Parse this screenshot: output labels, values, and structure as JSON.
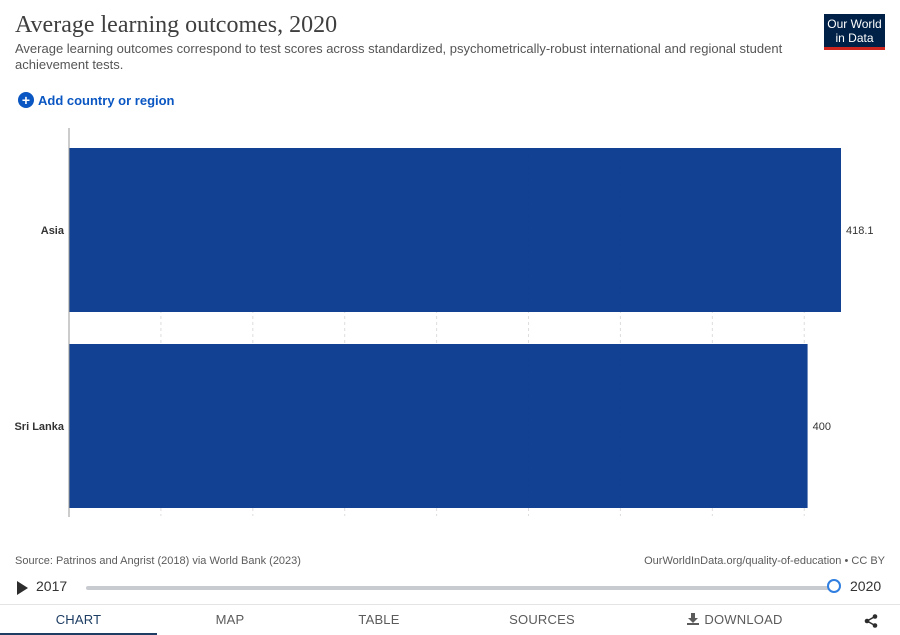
{
  "header": {
    "title": "Average learning outcomes, 2020",
    "subtitle": "Average learning outcomes correspond to test scores across standardized, psychometrically-robust international and regional student achievement tests.",
    "logo_line1": "Our World",
    "logo_line2": "in Data",
    "add_label": "Add country or region"
  },
  "chart_data": {
    "type": "bar",
    "orientation": "horizontal",
    "title": "Average learning outcomes, 2020",
    "categories": [
      "Asia",
      "Sri Lanka"
    ],
    "values": [
      418.1,
      400
    ],
    "value_labels": [
      "418.1",
      "400"
    ],
    "xlim": [
      0,
      418.1
    ],
    "grid": true,
    "bar_color": "#0a3b8f"
  },
  "footer": {
    "source": "Source: Patrinos and Angrist (2018) via World Bank (2023)",
    "url": "OurWorldInData.org/quality-of-education • CC BY"
  },
  "timeline": {
    "start_year": "2017",
    "end_year": "2020",
    "selected_year": 2020
  },
  "tabs": {
    "chart": "CHART",
    "map": "MAP",
    "table": "TABLE",
    "sources": "SOURCES",
    "download": "DOWNLOAD",
    "active": "chart"
  },
  "icons": {
    "add": "plus-circle-icon",
    "play": "play-icon",
    "download": "download-icon",
    "share": "share-icon"
  }
}
